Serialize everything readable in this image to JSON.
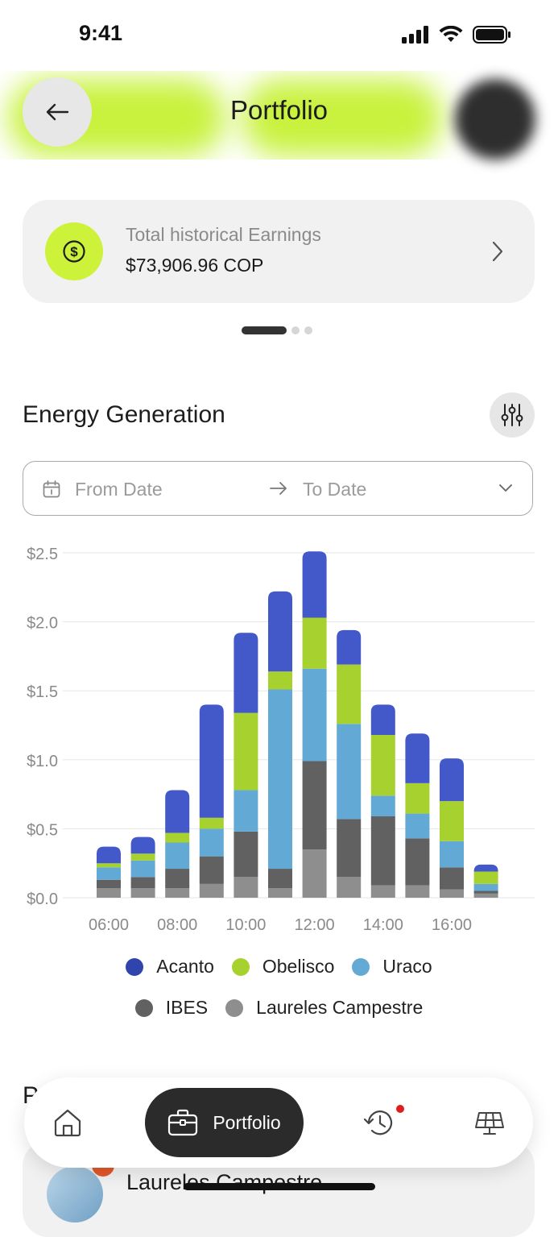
{
  "status_bar": {
    "time": "9:41"
  },
  "header": {
    "title": "Portfolio"
  },
  "earnings": {
    "label": "Total historical Earnings",
    "value": "$73,906.96 COP"
  },
  "energy": {
    "title": "Energy Generation",
    "from_placeholder": "From Date",
    "to_placeholder": "To Date"
  },
  "colors": {
    "accent": "#c8f23d",
    "dark": "#2b2b2b",
    "notification": "#e01d1d"
  },
  "chart_data": {
    "type": "bar",
    "stacked": true,
    "categories": [
      "06:00",
      "07:00",
      "08:00",
      "09:00",
      "10:00",
      "11:00",
      "12:00",
      "13:00",
      "14:00",
      "15:00",
      "16:00",
      "17:00"
    ],
    "x_tick_labels": [
      "06:00",
      "08:00",
      "10:00",
      "12:00",
      "14:00",
      "16:00"
    ],
    "y_ticks": [
      "$0.0",
      "$0.5",
      "$1.0",
      "$1.5",
      "$2.0",
      "$2.5"
    ],
    "ylim": [
      0,
      2.5
    ],
    "grid": true,
    "legend_position": "bottom",
    "series": [
      {
        "name": "Laureles Campestre",
        "color": "#8e8e8e",
        "values": [
          0.07,
          0.07,
          0.07,
          0.1,
          0.15,
          0.07,
          0.35,
          0.15,
          0.09,
          0.09,
          0.06,
          0.03
        ]
      },
      {
        "name": "IBES",
        "color": "#616161",
        "values": [
          0.06,
          0.08,
          0.14,
          0.2,
          0.33,
          0.14,
          0.64,
          0.42,
          0.5,
          0.34,
          0.16,
          0.02
        ]
      },
      {
        "name": "Uraco",
        "color": "#63a9d6",
        "values": [
          0.09,
          0.12,
          0.19,
          0.2,
          0.3,
          1.3,
          0.67,
          0.69,
          0.15,
          0.18,
          0.19,
          0.05
        ]
      },
      {
        "name": "Obelisco",
        "color": "#a7d12f",
        "values": [
          0.03,
          0.05,
          0.07,
          0.08,
          0.56,
          0.13,
          0.37,
          0.43,
          0.44,
          0.22,
          0.29,
          0.09
        ]
      },
      {
        "name": "Acanto",
        "color": "#4359c9",
        "values": [
          0.12,
          0.12,
          0.31,
          0.82,
          0.58,
          0.58,
          0.48,
          0.25,
          0.22,
          0.36,
          0.31,
          0.05
        ]
      }
    ],
    "legend_order": [
      "Acanto",
      "Obelisco",
      "Uraco",
      "IBES",
      "Laureles Campestre"
    ]
  },
  "legend": {
    "row1": [
      "Acanto",
      "Obelisco",
      "Uraco"
    ],
    "row2": [
      "IBES",
      "Laureles Campestre"
    ]
  },
  "section_below": {
    "heading_partial": "P",
    "card_title": "Laureles Campestre"
  },
  "tab_bar": {
    "items": [
      {
        "id": "home",
        "icon": "home-icon"
      },
      {
        "id": "portfolio",
        "label": "Portfolio",
        "icon": "briefcase-icon",
        "active": true
      },
      {
        "id": "history",
        "icon": "history-icon",
        "badge": true
      },
      {
        "id": "solar",
        "icon": "solar-panel-icon"
      }
    ]
  }
}
